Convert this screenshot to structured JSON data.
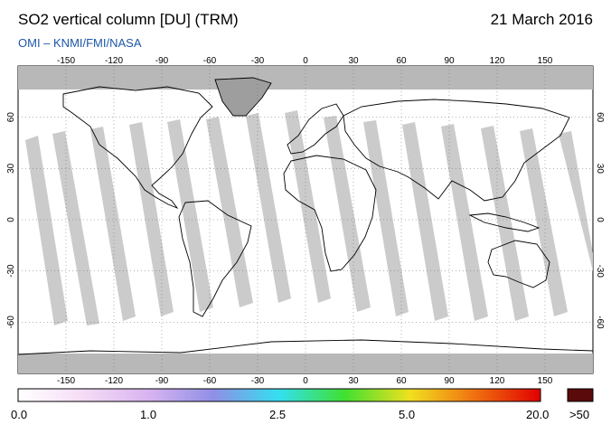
{
  "header": {
    "title": "SO2 vertical column [DU] (TRM)",
    "date": "21 March 2016",
    "source": "OMI  –  KNMI/FMI/NASA"
  },
  "map": {
    "lon_ticks": [
      "-150",
      "-120",
      "-90",
      "-60",
      "-30",
      "0",
      "30",
      "60",
      "90",
      "120",
      "150"
    ],
    "lat_ticks_left": [
      "60",
      "30",
      "0",
      "-30",
      "-60"
    ],
    "lat_ticks_right": [
      "60",
      "30",
      "0",
      "-30",
      "-60"
    ],
    "colors": {
      "ocean": "#ffffff",
      "no_data": "#b8b8b8",
      "coast": "#000000",
      "swath_gap": "#c9c9c9"
    }
  },
  "colorbar": {
    "labels": [
      "0.0",
      "1.0",
      "2.5",
      "5.0",
      "20.0"
    ],
    "over_label": ">50",
    "over_color": "#5a0a0a",
    "gradient": [
      "#ffffff",
      "#f5dcf5",
      "#d8b4f0",
      "#8f8fe6",
      "#33e0f0",
      "#40e030",
      "#f0e020",
      "#f07010",
      "#e00000"
    ]
  }
}
